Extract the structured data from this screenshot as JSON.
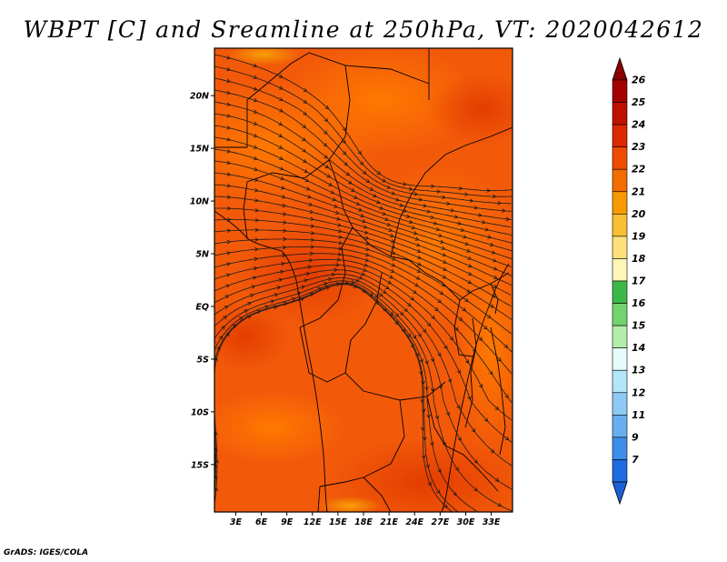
{
  "title": "WBPT [C] and Sreamline at 250hPa, VT: 2020042612",
  "credit": "GrADS: IGES/COLA",
  "map": {
    "lat_ticks": [
      {
        "label": "20N",
        "value": 20
      },
      {
        "label": "15N",
        "value": 15
      },
      {
        "label": "10N",
        "value": 10
      },
      {
        "label": "5N",
        "value": 5
      },
      {
        "label": "EQ",
        "value": 0
      },
      {
        "label": "5S",
        "value": -5
      },
      {
        "label": "10S",
        "value": -10
      },
      {
        "label": "15S",
        "value": -15
      }
    ],
    "lon_ticks": [
      {
        "label": "3E",
        "value": 3
      },
      {
        "label": "6E",
        "value": 6
      },
      {
        "label": "9E",
        "value": 9
      },
      {
        "label": "12E",
        "value": 12
      },
      {
        "label": "15E",
        "value": 15
      },
      {
        "label": "18E",
        "value": 18
      },
      {
        "label": "21E",
        "value": 21
      },
      {
        "label": "24E",
        "value": 24
      },
      {
        "label": "27E",
        "value": 27
      },
      {
        "label": "30E",
        "value": 30
      },
      {
        "label": "33E",
        "value": 33
      }
    ],
    "lon_range": [
      0.5,
      35.5
    ],
    "lat_range": [
      -19.5,
      24.5
    ]
  },
  "colorbar": {
    "levels": [
      {
        "label": "26",
        "color": "#a50000"
      },
      {
        "label": "25",
        "color": "#c01000"
      },
      {
        "label": "24",
        "color": "#dd2800"
      },
      {
        "label": "23",
        "color": "#f04a00"
      },
      {
        "label": "22",
        "color": "#f36c00"
      },
      {
        "label": "21",
        "color": "#f79a00"
      },
      {
        "label": "20",
        "color": "#fbbf33"
      },
      {
        "label": "19",
        "color": "#fde07a"
      },
      {
        "label": "18",
        "color": "#fdf6b8"
      },
      {
        "label": "17",
        "color": "#3cb84a"
      },
      {
        "label": "16",
        "color": "#73d46e"
      },
      {
        "label": "15",
        "color": "#b4ecac"
      },
      {
        "label": "14",
        "color": "#e6fbfb"
      },
      {
        "label": "13",
        "color": "#b2e6f8"
      },
      {
        "label": "12",
        "color": "#8ecaf3"
      },
      {
        "label": "11",
        "color": "#6aaef0"
      },
      {
        "label": "9",
        "color": "#3d8ee9"
      },
      {
        "label": "7",
        "color": "#1e6ce0"
      }
    ],
    "top_arrow_color": "#8a0000",
    "bottom_arrow_color": "#1a5fd6"
  }
}
